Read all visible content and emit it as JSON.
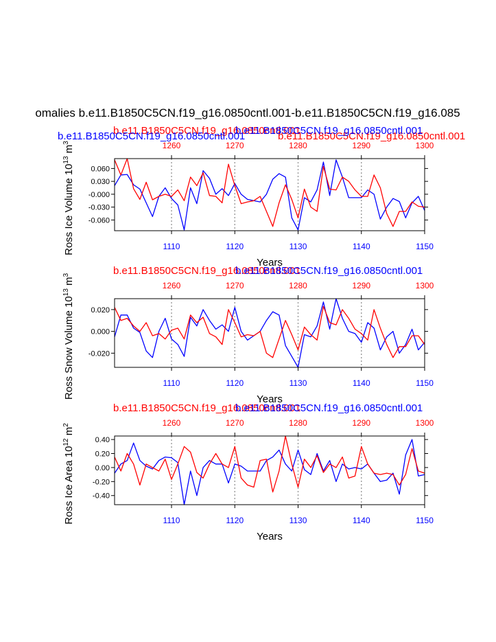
{
  "page_title": "omalies b.e11.B1850C5CN.f19_g16.0850cntl.001-b.e11.B1850C5CN.f19_g16.085",
  "colors": {
    "blue": "#0000ff",
    "red": "#ff0000",
    "grid": "#999999",
    "axis": "#000000"
  },
  "chart_data": [
    {
      "type": "line",
      "ylabel_main": "Ross Ice Volume 10",
      "ylabel_sup": "13",
      "ylabel_unit": " m",
      "ylabel_unit_sup": "3",
      "xlabel": "Years",
      "title_blue": "b.e11.B1850C5CN.f19_g16.0850cntl.001",
      "title_red": "b.e11.B1850C5CN.f19_g16.0850cntl.001",
      "ylim": [
        -0.085,
        0.083
      ],
      "yticks": [
        0.06,
        0.03,
        0.0,
        -0.03,
        -0.06
      ],
      "yticklabels": [
        "0.060",
        "0.030",
        "-0.000",
        "-0.030",
        "-0.060"
      ],
      "bottom_axis": {
        "range": [
          1101,
          1150
        ],
        "ticks": [
          1110,
          1120,
          1130,
          1140,
          1150
        ],
        "labels": [
          "1110",
          "1120",
          "1130",
          "1140",
          "1150"
        ]
      },
      "top_axis": {
        "range": [
          1251,
          1300
        ],
        "ticks": [
          1260,
          1270,
          1280,
          1290,
          1300
        ],
        "labels": [
          "1260",
          "1270",
          "1280",
          "1290",
          "1300"
        ]
      },
      "series": [
        {
          "name": "blue",
          "color": "#0000ff",
          "x": [
            1101,
            1102,
            1103,
            1104,
            1105,
            1106,
            1107,
            1108,
            1109,
            1110,
            1111,
            1112,
            1113,
            1114,
            1115,
            1116,
            1117,
            1118,
            1119,
            1120,
            1121,
            1122,
            1123,
            1124,
            1125,
            1126,
            1127,
            1128,
            1129,
            1130,
            1131,
            1132,
            1133,
            1134,
            1135,
            1136,
            1137,
            1138,
            1139,
            1140,
            1141,
            1142,
            1143,
            1144,
            1145,
            1146,
            1147,
            1148,
            1149,
            1150
          ],
          "values": [
            0.02,
            0.045,
            0.046,
            0.022,
            0.012,
            -0.02,
            -0.052,
            -0.005,
            0.015,
            -0.01,
            -0.025,
            -0.083,
            0.015,
            -0.022,
            0.055,
            0.037,
            0.0,
            0.013,
            -0.003,
            0.025,
            0.0,
            -0.012,
            -0.015,
            -0.018,
            0.0,
            0.035,
            0.048,
            0.04,
            -0.055,
            -0.083,
            -0.008,
            -0.018,
            0.01,
            0.075,
            -0.003,
            0.08,
            0.04,
            -0.008,
            -0.008,
            -0.008,
            0.01,
            0.0,
            -0.058,
            -0.03,
            -0.01,
            -0.017,
            -0.055,
            -0.02,
            -0.005,
            -0.038
          ]
        },
        {
          "name": "red",
          "color": "#ff0000",
          "x": [
            1101,
            1102,
            1103,
            1104,
            1105,
            1106,
            1107,
            1108,
            1109,
            1110,
            1111,
            1112,
            1113,
            1114,
            1115,
            1116,
            1117,
            1118,
            1119,
            1120,
            1121,
            1122,
            1123,
            1124,
            1125,
            1126,
            1127,
            1128,
            1129,
            1130,
            1131,
            1132,
            1133,
            1134,
            1135,
            1136,
            1137,
            1138,
            1139,
            1140,
            1141,
            1142,
            1143,
            1144,
            1145,
            1146,
            1147,
            1148,
            1149,
            1150
          ],
          "values": [
            0.08,
            0.045,
            0.083,
            0.013,
            -0.012,
            0.028,
            -0.013,
            -0.005,
            0.0,
            -0.005,
            0.01,
            -0.015,
            0.04,
            0.02,
            0.05,
            -0.003,
            -0.005,
            -0.02,
            0.07,
            0.02,
            -0.022,
            -0.018,
            -0.015,
            -0.005,
            -0.04,
            -0.075,
            -0.02,
            0.022,
            -0.012,
            -0.055,
            0.012,
            -0.03,
            -0.04,
            0.065,
            0.012,
            0.01,
            0.04,
            0.03,
            0.01,
            -0.005,
            -0.005,
            0.045,
            0.015,
            -0.045,
            -0.075,
            -0.04,
            -0.04,
            -0.018,
            -0.028,
            -0.03
          ]
        }
      ]
    },
    {
      "type": "line",
      "ylabel_main": "Ross Snow Volume 10",
      "ylabel_sup": "13",
      "ylabel_unit": " m",
      "ylabel_unit_sup": "3",
      "xlabel": "Years",
      "title_blue": "b.e11.B1850C5CN.f19_g16.0850cntl.001",
      "title_red": "b.e11.B1850C5CN.f19_g16.0850cntl.001",
      "ylim": [
        -0.033,
        0.03
      ],
      "yticks": [
        0.02,
        0.0,
        -0.02
      ],
      "yticklabels": [
        "0.020",
        "0.000",
        "-0.020"
      ],
      "bottom_axis": {
        "range": [
          1101,
          1150
        ],
        "ticks": [
          1110,
          1120,
          1130,
          1140,
          1150
        ],
        "labels": [
          "1110",
          "1120",
          "1130",
          "1140",
          "1150"
        ]
      },
      "top_axis": {
        "range": [
          1251,
          1300
        ],
        "ticks": [
          1260,
          1270,
          1280,
          1290,
          1300
        ],
        "labels": [
          "1260",
          "1270",
          "1280",
          "1290",
          "1300"
        ]
      },
      "series": [
        {
          "name": "blue",
          "color": "#0000ff",
          "x": [
            1101,
            1102,
            1103,
            1104,
            1105,
            1106,
            1107,
            1108,
            1109,
            1110,
            1111,
            1112,
            1113,
            1114,
            1115,
            1116,
            1117,
            1118,
            1119,
            1120,
            1121,
            1122,
            1123,
            1124,
            1125,
            1126,
            1127,
            1128,
            1129,
            1130,
            1131,
            1132,
            1133,
            1134,
            1135,
            1136,
            1137,
            1138,
            1139,
            1140,
            1141,
            1142,
            1143,
            1144,
            1145,
            1146,
            1147,
            1148,
            1149,
            1150
          ],
          "values": [
            -0.005,
            0.015,
            0.015,
            0.003,
            -0.001,
            -0.018,
            -0.024,
            0.0,
            0.012,
            -0.007,
            -0.012,
            -0.023,
            0.013,
            0.005,
            0.02,
            0.01,
            0.002,
            0.006,
            0.0,
            0.022,
            0.0,
            -0.008,
            -0.004,
            0.0,
            0.01,
            0.018,
            0.015,
            -0.013,
            -0.023,
            -0.033,
            -0.003,
            -0.005,
            0.005,
            0.027,
            0.002,
            0.03,
            0.012,
            0.0,
            -0.002,
            -0.01,
            0.008,
            0.003,
            -0.017,
            -0.005,
            0.0,
            -0.02,
            -0.012,
            0.002,
            -0.017,
            -0.01
          ]
        },
        {
          "name": "red",
          "color": "#ff0000",
          "x": [
            1101,
            1102,
            1103,
            1104,
            1105,
            1106,
            1107,
            1108,
            1109,
            1110,
            1111,
            1112,
            1113,
            1114,
            1115,
            1116,
            1117,
            1118,
            1119,
            1120,
            1121,
            1122,
            1123,
            1124,
            1125,
            1126,
            1127,
            1128,
            1129,
            1130,
            1131,
            1132,
            1133,
            1134,
            1135,
            1136,
            1137,
            1138,
            1139,
            1140,
            1141,
            1142,
            1143,
            1144,
            1145,
            1146,
            1147,
            1148,
            1149,
            1150
          ],
          "values": [
            0.022,
            0.01,
            0.012,
            0.005,
            0.0,
            0.008,
            -0.004,
            -0.002,
            -0.007,
            0.001,
            0.003,
            -0.007,
            0.015,
            0.008,
            0.013,
            -0.002,
            -0.005,
            -0.012,
            0.02,
            0.008,
            -0.005,
            -0.003,
            -0.004,
            0.0,
            -0.02,
            -0.024,
            -0.007,
            0.01,
            -0.003,
            -0.017,
            0.004,
            -0.003,
            -0.008,
            0.023,
            0.008,
            0.006,
            0.02,
            0.012,
            0.002,
            -0.002,
            -0.008,
            0.02,
            0.003,
            -0.012,
            -0.024,
            -0.014,
            -0.014,
            -0.004,
            -0.004,
            -0.012
          ]
        }
      ]
    },
    {
      "type": "line",
      "ylabel_main": "Ross Ice Area 10",
      "ylabel_sup": "12",
      "ylabel_unit": " m",
      "ylabel_unit_sup": "2",
      "xlabel": "Years",
      "title_blue": "b.e11.B1850C5CN.f19_g16.0850cntl.001",
      "title_red": "b.e11.B1850C5CN.f19_g16.0850cntl.001",
      "ylim": [
        -0.53,
        0.45
      ],
      "yticks": [
        0.4,
        0.2,
        0.0,
        -0.2,
        -0.4
      ],
      "yticklabels": [
        "0.40",
        "0.20",
        "0.00",
        "-0.20",
        "-0.40"
      ],
      "bottom_axis": {
        "range": [
          1101,
          1150
        ],
        "ticks": [
          1110,
          1120,
          1130,
          1140,
          1150
        ],
        "labels": [
          "1110",
          "1120",
          "1130",
          "1140",
          "1150"
        ]
      },
      "top_axis": {
        "range": [
          1251,
          1300
        ],
        "ticks": [
          1260,
          1270,
          1280,
          1290,
          1300
        ],
        "labels": [
          "1260",
          "1270",
          "1280",
          "1290",
          "1300"
        ]
      },
      "series": [
        {
          "name": "blue",
          "color": "#0000ff",
          "x": [
            1101,
            1102,
            1103,
            1104,
            1105,
            1106,
            1107,
            1108,
            1109,
            1110,
            1111,
            1112,
            1113,
            1114,
            1115,
            1116,
            1117,
            1118,
            1119,
            1120,
            1121,
            1122,
            1123,
            1124,
            1125,
            1126,
            1127,
            1128,
            1129,
            1130,
            1131,
            1132,
            1133,
            1134,
            1135,
            1136,
            1137,
            1138,
            1139,
            1140,
            1141,
            1142,
            1143,
            1144,
            1145,
            1146,
            1147,
            1148,
            1149,
            1150
          ],
          "values": [
            -0.08,
            0.05,
            0.1,
            0.35,
            0.1,
            0.02,
            -0.02,
            0.1,
            0.15,
            0.14,
            0.07,
            -0.53,
            -0.05,
            -0.4,
            0.0,
            0.1,
            0.05,
            0.05,
            -0.22,
            0.05,
            0.02,
            -0.05,
            -0.05,
            -0.05,
            0.1,
            0.15,
            0.25,
            0.05,
            -0.05,
            0.25,
            -0.03,
            -0.1,
            0.2,
            -0.05,
            0.1,
            -0.2,
            0.05,
            -0.02,
            0.0,
            -0.02,
            0.05,
            -0.08,
            -0.2,
            -0.18,
            -0.08,
            -0.38,
            0.18,
            0.4,
            -0.12,
            -0.1
          ]
        },
        {
          "name": "red",
          "color": "#ff0000",
          "x": [
            1101,
            1102,
            1103,
            1104,
            1105,
            1106,
            1107,
            1108,
            1109,
            1110,
            1111,
            1112,
            1113,
            1114,
            1115,
            1116,
            1117,
            1118,
            1119,
            1120,
            1121,
            1122,
            1123,
            1124,
            1125,
            1126,
            1127,
            1128,
            1129,
            1130,
            1131,
            1132,
            1133,
            1134,
            1135,
            1136,
            1137,
            1138,
            1139,
            1140,
            1141,
            1142,
            1143,
            1144,
            1145,
            1146,
            1147,
            1148,
            1149,
            1150
          ],
          "values": [
            0.15,
            -0.05,
            0.2,
            0.05,
            -0.25,
            0.05,
            0.0,
            -0.05,
            0.12,
            -0.17,
            0.05,
            0.3,
            0.22,
            -0.07,
            -0.15,
            0.05,
            0.2,
            0.05,
            0.0,
            0.3,
            -0.15,
            -0.25,
            -0.28,
            0.1,
            0.12,
            -0.35,
            -0.05,
            0.45,
            0.05,
            -0.28,
            0.12,
            0.0,
            0.17,
            -0.07,
            0.05,
            0.0,
            0.15,
            -0.15,
            -0.12,
            0.3,
            0.05,
            -0.08,
            -0.1,
            -0.08,
            -0.1,
            -0.25,
            -0.1,
            0.27,
            -0.05,
            -0.08
          ]
        }
      ]
    }
  ]
}
